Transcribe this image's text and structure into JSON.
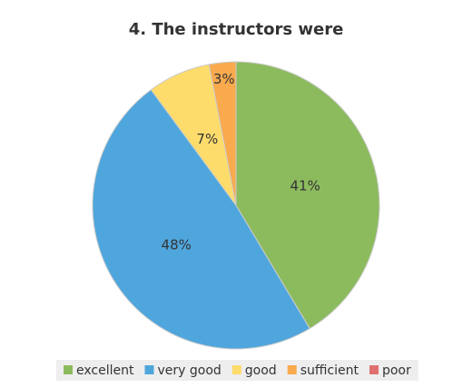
{
  "chart_data": {
    "type": "pie",
    "title": "4. The instructors were",
    "categories": [
      "excellent",
      "very good",
      "good",
      "sufficient",
      "poor"
    ],
    "values": [
      41,
      48,
      7,
      3,
      0
    ],
    "value_labels": [
      "41%",
      "48%",
      "7%",
      "3%",
      null
    ],
    "colors": [
      "#8cbb5e",
      "#4fa6dd",
      "#fddc6b",
      "#f8aa4d",
      "#e07070"
    ],
    "legend": "bottom"
  }
}
